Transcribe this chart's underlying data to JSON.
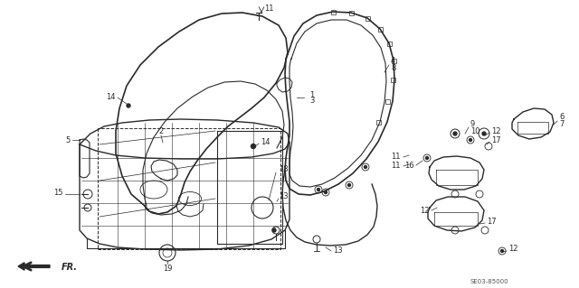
{
  "bg_color": "#ffffff",
  "line_color": "#2a2a2a",
  "figure_width": 6.4,
  "figure_height": 3.19,
  "dpi": 100,
  "ref_text": "SE03-85000",
  "fr_text": "FR."
}
